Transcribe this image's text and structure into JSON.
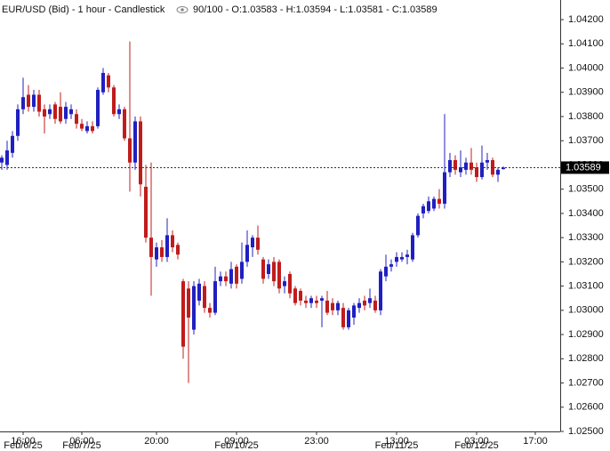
{
  "chart_data": {
    "type": "candlestick",
    "title": "EUR/USD (Bid) - 1 hour - Candlestick",
    "legend_text": "90/100 - O:1.03583 - H:1.03594 - L:1.03581 - C:1.03589",
    "up_color": "#2020c0",
    "down_color": "#c01c1c",
    "categories": [
      null,
      null,
      null,
      null,
      "16:00",
      null,
      null,
      null,
      null,
      null,
      null,
      null,
      null,
      null,
      null,
      "06:00",
      null,
      null,
      null,
      null,
      null,
      null,
      null,
      null,
      null,
      null,
      null,
      null,
      null,
      "20:00",
      null,
      null,
      null,
      null,
      null,
      null,
      null,
      null,
      null,
      null,
      null,
      null,
      null,
      null,
      "09:00",
      null,
      null,
      null,
      null,
      null,
      null,
      null,
      null,
      null,
      null,
      null,
      null,
      null,
      null,
      "23:00",
      null,
      null,
      null,
      null,
      null,
      null,
      null,
      null,
      null,
      null,
      null,
      null,
      null,
      null,
      "13:00",
      null,
      null,
      null,
      null,
      null,
      null,
      null,
      null,
      null,
      null,
      null,
      null,
      null,
      null,
      "03:00",
      null,
      null,
      null,
      null,
      null,
      null,
      null,
      null,
      null,
      null,
      "17:00"
    ],
    "dates": [
      null,
      null,
      null,
      null,
      "Feb/6/25",
      null,
      null,
      null,
      null,
      null,
      null,
      null,
      null,
      null,
      null,
      "Feb/7/25",
      null,
      null,
      null,
      null,
      null,
      null,
      null,
      null,
      null,
      null,
      null,
      null,
      null,
      null,
      null,
      null,
      null,
      null,
      null,
      null,
      null,
      null,
      null,
      null,
      null,
      null,
      null,
      null,
      "Feb/10/25",
      null,
      null,
      null,
      null,
      null,
      null,
      null,
      null,
      null,
      null,
      null,
      null,
      null,
      null,
      null,
      null,
      null,
      null,
      null,
      null,
      null,
      null,
      null,
      null,
      null,
      null,
      null,
      null,
      null,
      "Feb/11/25",
      null,
      null,
      null,
      null,
      null,
      null,
      null,
      null,
      null,
      null,
      null,
      null,
      null,
      null,
      "Feb/12/25",
      null,
      null,
      null,
      null,
      null,
      null,
      null,
      null,
      null,
      null,
      null
    ],
    "open": [
      1.0361,
      1.036,
      1.0365,
      1.0372,
      1.0383,
      1.0389,
      1.0384,
      1.0389,
      1.0383,
      1.0381,
      1.0385,
      1.0384,
      1.0379,
      1.0381,
      1.0381,
      1.0377,
      1.0374,
      1.0376,
      1.0376,
      1.039,
      1.0397,
      1.0392,
      1.0381,
      1.0383,
      1.0371,
      1.0361,
      1.0378,
      1.0351,
      1.033,
      1.0321,
      1.0326,
      1.0322,
      1.0331,
      1.0327,
      1.0312,
      1.0309,
      1.0292,
      1.0304,
      1.031,
      1.0301,
      1.0299,
      1.0312,
      1.0314,
      1.0311,
      1.0318,
      1.0313,
      1.032,
      1.0326,
      1.033,
      1.0321,
      1.0315,
      1.032,
      1.032,
      1.031,
      1.0315,
      1.0309,
      1.0308,
      1.0304,
      1.0303,
      1.0304,
      1.0304,
      1.0304,
      1.0303,
      1.03,
      1.0301,
      1.0293,
      1.0297,
      1.0301,
      1.0304,
      1.0303,
      1.0304,
      1.03,
      1.0314,
      1.0318,
      1.032,
      1.0321,
      1.0322,
      1.0321,
      1.0331,
      1.034,
      1.0341,
      1.0342,
      1.0346,
      1.0344,
      1.0357,
      1.0362,
      1.0357,
      1.0358,
      1.0361,
      1.0359,
      1.0355,
      1.0361,
      1.0362,
      1.0356,
      1.03583,
      null,
      null,
      null,
      null,
      null,
      null
    ],
    "high": [
      1.0364,
      1.037,
      1.0374,
      1.0385,
      1.0396,
      1.0393,
      1.0391,
      1.0391,
      1.0385,
      1.0385,
      1.0386,
      1.039,
      1.0386,
      1.0385,
      1.0383,
      1.0379,
      1.0378,
      1.0378,
      1.0392,
      1.04,
      1.0398,
      1.0393,
      1.0385,
      1.0384,
      1.0411,
      1.038,
      1.038,
      1.036,
      1.0361,
      1.0328,
      1.0329,
      1.0338,
      1.0333,
      1.0328,
      1.0313,
      1.0312,
      1.0312,
      1.0313,
      1.0312,
      1.0303,
      1.0318,
      1.0316,
      1.0316,
      1.032,
      1.0319,
      1.0328,
      1.0333,
      1.0331,
      1.0335,
      1.0322,
      1.0321,
      1.0322,
      1.0321,
      1.0314,
      1.0316,
      1.031,
      1.0309,
      1.0306,
      1.0306,
      1.0306,
      1.0306,
      1.0308,
      1.0305,
      1.0304,
      1.0303,
      1.0301,
      1.0303,
      1.0305,
      1.0306,
      1.0309,
      1.0306,
      1.0317,
      1.0323,
      1.0321,
      1.0324,
      1.0324,
      1.0325,
      1.0332,
      1.034,
      1.0344,
      1.0347,
      1.0347,
      1.035,
      1.0381,
      1.0365,
      1.0364,
      1.0366,
      1.0363,
      1.0367,
      1.0361,
      1.0368,
      1.0365,
      1.0363,
      1.0359,
      1.03594,
      null,
      null,
      null,
      null,
      null,
      null
    ],
    "low": [
      1.0358,
      1.0358,
      1.0363,
      1.037,
      1.0381,
      1.0382,
      1.0382,
      1.038,
      1.0373,
      1.0379,
      1.0377,
      1.0377,
      1.0377,
      1.0379,
      1.0375,
      1.0374,
      1.0373,
      1.0373,
      1.0375,
      1.0389,
      1.039,
      1.038,
      1.0379,
      1.037,
      1.0349,
      1.0358,
      1.0347,
      1.0328,
      1.0306,
      1.0318,
      1.032,
      1.032,
      1.0324,
      1.0321,
      1.028,
      1.027,
      1.029,
      1.0302,
      1.0299,
      1.0297,
      1.0298,
      1.031,
      1.031,
      1.0309,
      1.0309,
      1.0311,
      1.0318,
      1.0322,
      1.0323,
      1.0311,
      1.0313,
      1.031,
      1.0307,
      1.0307,
      1.0305,
      1.0302,
      1.0302,
      1.0301,
      1.0301,
      1.0301,
      1.0293,
      1.0298,
      1.0298,
      1.0298,
      1.0292,
      1.0292,
      1.0294,
      1.0299,
      1.03,
      1.0301,
      1.0299,
      1.0298,
      1.0312,
      1.0316,
      1.0318,
      1.032,
      1.0319,
      1.032,
      1.033,
      1.0338,
      1.034,
      1.0341,
      1.0342,
      1.0342,
      1.0355,
      1.0356,
      1.0355,
      1.0356,
      1.0356,
      1.0353,
      1.0354,
      1.0358,
      1.0355,
      1.0353,
      1.03581,
      null,
      null,
      null,
      null,
      null,
      null
    ],
    "close": [
      1.0363,
      1.0366,
      1.0372,
      1.0383,
      1.0388,
      1.0384,
      1.0389,
      1.0382,
      1.038,
      1.0383,
      1.0379,
      1.0378,
      1.0384,
      1.0383,
      1.0377,
      1.0375,
      1.0376,
      1.0374,
      1.0391,
      1.0398,
      1.0392,
      1.0381,
      1.0383,
      1.0371,
      1.0361,
      1.0378,
      1.0352,
      1.033,
      1.0322,
      1.0326,
      1.0322,
      1.0331,
      1.0326,
      1.0323,
      1.0285,
      1.0297,
      1.031,
      1.0311,
      1.0301,
      1.0299,
      1.0312,
      1.0314,
      1.0312,
      1.0317,
      1.0311,
      1.032,
      1.0327,
      1.033,
      1.0325,
      1.0313,
      1.0319,
      1.0312,
      1.0309,
      1.0312,
      1.0307,
      1.0303,
      1.0304,
      1.0303,
      1.0305,
      1.0303,
      1.0305,
      1.0299,
      1.03,
      1.0303,
      1.0293,
      1.03,
      1.0302,
      1.0303,
      1.0302,
      1.0305,
      1.03,
      1.0316,
      1.0318,
      1.0319,
      1.0322,
      1.0322,
      1.0323,
      1.0331,
      1.0339,
      1.0343,
      1.0345,
      1.0346,
      1.0344,
      1.0357,
      1.0362,
      1.0358,
      1.0359,
      1.0361,
      1.0358,
      1.0355,
      1.0361,
      1.0362,
      1.0356,
      1.0358,
      1.03589,
      null,
      null,
      null,
      null,
      null,
      null
    ],
    "ylim": [
      1.025,
      1.04281
    ],
    "yticks": [
      {
        "value": 1.025,
        "label": "1.02500"
      },
      {
        "value": 1.026,
        "label": "1.02600"
      },
      {
        "value": 1.027,
        "label": "1.02700"
      },
      {
        "value": 1.028,
        "label": "1.02800"
      },
      {
        "value": 1.029,
        "label": "1.02900"
      },
      {
        "value": 1.03,
        "label": "1.03000"
      },
      {
        "value": 1.031,
        "label": "1.03100"
      },
      {
        "value": 1.032,
        "label": "1.03200"
      },
      {
        "value": 1.033,
        "label": "1.03300"
      },
      {
        "value": 1.034,
        "label": "1.03400"
      },
      {
        "value": 1.035,
        "label": "1.03500"
      },
      {
        "value": 1.036,
        "label": "1.03600"
      },
      {
        "value": 1.037,
        "label": "1.03700"
      },
      {
        "value": 1.038,
        "label": "1.03800"
      },
      {
        "value": 1.039,
        "label": "1.03900"
      },
      {
        "value": 1.04,
        "label": "1.04000"
      },
      {
        "value": 1.041,
        "label": "1.04100"
      },
      {
        "value": 1.042,
        "label": "1.04200"
      }
    ],
    "grid": false
  }
}
